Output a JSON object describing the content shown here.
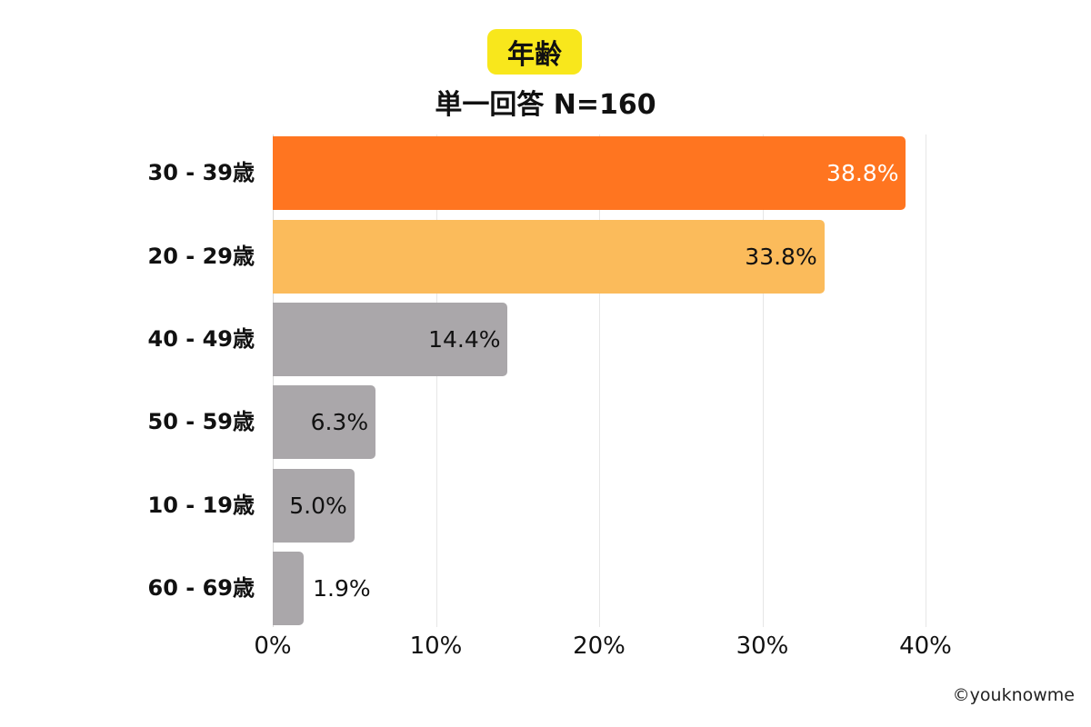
{
  "header": {
    "title": "年齢",
    "subtitle": "単一回答  N=160"
  },
  "footer": {
    "credit": "©youknowme"
  },
  "colors": {
    "highlight_1": "#ff7520",
    "highlight_2": "#fbbb5b",
    "other": "#aaa7aa",
    "title_badge": "#f8e71c"
  },
  "chart_data": {
    "type": "bar",
    "orientation": "horizontal",
    "title": "年齢",
    "subtitle": "単一回答  N=160",
    "categories": [
      "30 - 39歳",
      "20 - 29歳",
      "40 - 49歳",
      "50 - 59歳",
      "10 - 19歳",
      "60 - 69歳"
    ],
    "values": [
      38.8,
      33.8,
      14.4,
      6.3,
      5.0,
      1.9
    ],
    "value_labels": [
      "38.8%",
      "33.8%",
      "14.4%",
      "6.3%",
      "5.0%",
      "1.9%"
    ],
    "bar_colors": [
      "#ff7520",
      "#fbbb5b",
      "#aaa7aa",
      "#aaa7aa",
      "#aaa7aa",
      "#aaa7aa"
    ],
    "label_colors": [
      "#ffffff",
      "#111111",
      "#111111",
      "#111111",
      "#111111",
      "#111111"
    ],
    "xlabel": "",
    "ylabel": "",
    "xlim": [
      0,
      40
    ],
    "x_ticks": [
      "0%",
      "10%",
      "20%",
      "30%",
      "40%"
    ],
    "grid": true,
    "legend": "none"
  }
}
